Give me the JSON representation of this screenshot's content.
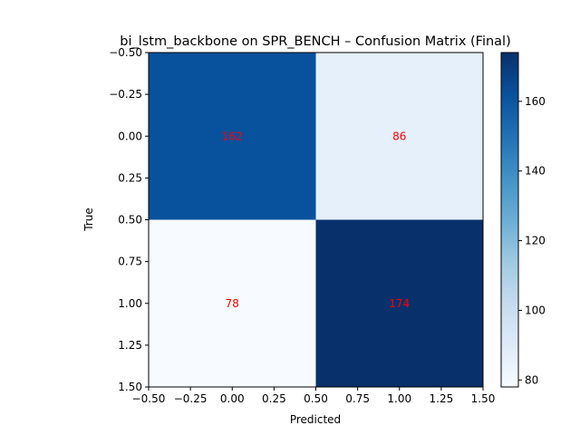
{
  "chart_data": {
    "type": "heatmap",
    "title": "bi_lstm_backbone on SPR_BENCH – Confusion Matrix (Final)",
    "xlabel": "Predicted",
    "ylabel": "True",
    "xlim": [
      -0.5,
      1.5
    ],
    "ylim": [
      1.5,
      -0.5
    ],
    "x_ticks": [
      "−0.50",
      "−0.25",
      "0.00",
      "0.25",
      "0.50",
      "0.75",
      "1.00",
      "1.25",
      "1.50"
    ],
    "y_ticks": [
      "−0.50",
      "−0.25",
      "0.00",
      "0.25",
      "0.50",
      "0.75",
      "1.00",
      "1.25",
      "1.50"
    ],
    "matrix": [
      [
        162,
        86
      ],
      [
        78,
        174
      ]
    ],
    "cell_labels": [
      "162",
      "86",
      "78",
      "174"
    ],
    "annotation_color": "#ff0000",
    "colormap": "Blues",
    "colorbar": {
      "range": [
        78,
        174
      ],
      "ticks": [
        "80",
        "100",
        "120",
        "140",
        "160"
      ]
    },
    "grid": false
  }
}
